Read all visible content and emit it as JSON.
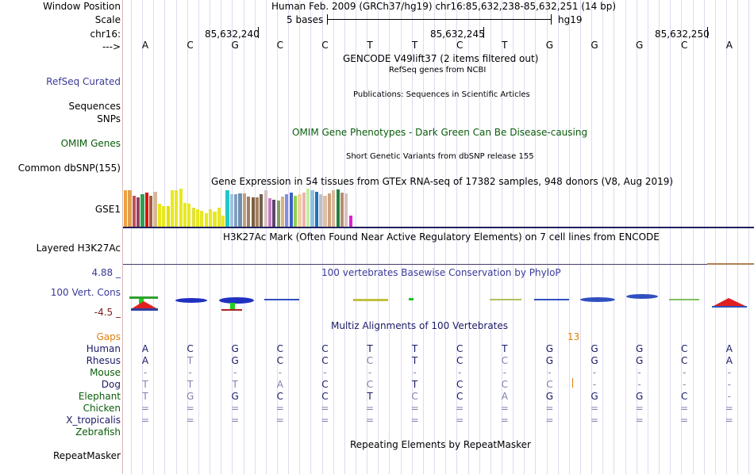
{
  "header": {
    "window_position_label": "Window Position",
    "window_position_value": "Human Feb. 2009 (GRCh37/hg19)   chr16:85,632,238-85,632,251 (14 bp)",
    "scale_label": "Scale",
    "scale_text": "5 bases",
    "scale_assembly": "hg19",
    "chrom_label": "chr16:",
    "coords": [
      "85,632,240",
      "85,632,245",
      "85,632,250"
    ],
    "arrow_label": "--->"
  },
  "bases": [
    "A",
    "C",
    "G",
    "C",
    "C",
    "T",
    "T",
    "C",
    "T",
    "G",
    "G",
    "G",
    "C",
    "A"
  ],
  "tracks": {
    "gencode_title": "GENCODE V49lift37 (2 items filtered out)",
    "refseq_title": "RefSeq genes from NCBI",
    "refseq_label": "RefSeq Curated",
    "pubs_title": "Publications: Sequences in Scientific Articles",
    "sequences_label": "Sequences",
    "snps_label": "SNPs",
    "omim_title": "OMIM Gene Phenotypes - Dark Green Can Be Disease-causing",
    "omim_label": "OMIM Genes",
    "dbsnp_title": "Short Genetic Variants from dbSNP release 155",
    "dbsnp_label": "Common dbSNP(155)",
    "gtex_title": "Gene Expression in 54 tissues from GTEx RNA-seq of 17382 samples, 948 donors (V8, Aug 2019)",
    "gtex_label": "GSE1",
    "h3k27ac_title": "H3K27Ac Mark (Often Found Near Active Regulatory Elements) on 7 cell lines from ENCODE",
    "h3k27ac_label": "Layered H3K27Ac",
    "phylop_max": "4.88 _",
    "phylop_title": "100 vertebrates Basewise Conservation by PhyloP",
    "phylop_label": "100 Vert. Cons",
    "phylop_min": "-4.5 _",
    "multiz_title": "Multiz Alignments of 100 Vertebrates",
    "gaps_label": "Gaps",
    "gap_count": "13",
    "repeat_title": "Repeating Elements by RepeatMasker",
    "repeat_label": "RepeatMasker"
  },
  "gtex_values": [
    0.95,
    0.95,
    0.82,
    0.78,
    0.85,
    0.9,
    0.82,
    0.92,
    0.6,
    0.55,
    0.55,
    0.95,
    0.95,
    1.0,
    0.62,
    0.6,
    0.5,
    0.45,
    0.42,
    0.35,
    0.45,
    0.4,
    0.5,
    0.3,
    0.95,
    0.85,
    0.85,
    0.88,
    0.88,
    0.8,
    0.78,
    0.78,
    0.85,
    0.95,
    0.75,
    0.7,
    0.68,
    0.8,
    0.85,
    0.9,
    0.82,
    0.85,
    0.9,
    1.0,
    0.95,
    0.92,
    0.85,
    0.82,
    0.88,
    0.95,
    0.98,
    0.9,
    0.88,
    0.3
  ],
  "gtex_colors": [
    "#f0a040",
    "#e0a050",
    "#c05050",
    "#9a4060",
    "#30a050",
    "#e01010",
    "#a06040",
    "#d8b898",
    "#e8e820",
    "#e8e820",
    "#e0e000",
    "#e8e820",
    "#e8e820",
    "#e8e820",
    "#e8e820",
    "#e8e820",
    "#e0e040",
    "#e8e820",
    "#e8e820",
    "#e8e820",
    "#e8e820",
    "#e8e820",
    "#e8e820",
    "#e8e820",
    "#20c8c8",
    "#a0c0e0",
    "#80a0c0",
    "#7090b0",
    "#c0a080",
    "#a08060",
    "#806040",
    "#a08060",
    "#706050",
    "#d8c0c0",
    "#c080c0",
    "#604070",
    "#80a060",
    "#e0b080",
    "#8090e0",
    "#4060c0",
    "#90d050",
    "#f0d0a0",
    "#f0b0b0",
    "#c0f0a0",
    "#90c0e0",
    "#2070c0",
    "#c0c0c0",
    "#e0c0a0",
    "#d0a080",
    "#d8b898",
    "#208040",
    "#b09070",
    "#d8c0c0",
    "#e020d0"
  ],
  "species": [
    {
      "name": "Human",
      "color": "#1a1a66",
      "bases": [
        "A",
        "C",
        "G",
        "C",
        "C",
        "T",
        "T",
        "C",
        "T",
        "G",
        "G",
        "G",
        "C",
        "A"
      ]
    },
    {
      "name": "Rhesus",
      "color": "#1a1a66",
      "bases": [
        "A",
        "T",
        "G",
        "C",
        "C",
        "C",
        "T",
        "C",
        "C",
        "G",
        "G",
        "G",
        "C",
        "A"
      ]
    },
    {
      "name": "Mouse",
      "color": "#0a5c0a",
      "bases": [
        "-",
        "-",
        "-",
        "-",
        "-",
        "-",
        "-",
        "-",
        "-",
        "-",
        "-",
        "-",
        "-",
        "-"
      ]
    },
    {
      "name": "Dog",
      "color": "#1a1a66",
      "bases": [
        "T",
        "T",
        "T",
        "A",
        "C",
        "C",
        "T",
        "C",
        "C",
        "C",
        "-",
        "-",
        "-",
        "-"
      ]
    },
    {
      "name": "Elephant",
      "color": "#0a5c0a",
      "bases": [
        "T",
        "G",
        "G",
        "C",
        "C",
        "T",
        "C",
        "C",
        "A",
        "G",
        "G",
        "G",
        "C",
        "-"
      ]
    },
    {
      "name": "Chicken",
      "color": "#0a5c0a",
      "bases": [
        "=",
        "=",
        "=",
        "=",
        "=",
        "=",
        "=",
        "=",
        "=",
        "=",
        "=",
        "=",
        "=",
        "="
      ]
    },
    {
      "name": "X_tropicalis",
      "color": "#1a1a66",
      "bases": [
        "=",
        "=",
        "=",
        "=",
        "=",
        "=",
        "=",
        "=",
        "=",
        "=",
        "=",
        "=",
        "=",
        "="
      ]
    },
    {
      "name": "Zebrafish",
      "color": "#0a5c0a",
      "bases": [
        "",
        "",
        "",
        "",
        "",
        "",
        "",
        "",
        "",
        "",
        "",
        "",
        "",
        ""
      ]
    }
  ]
}
